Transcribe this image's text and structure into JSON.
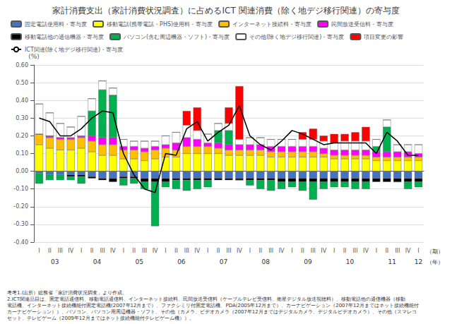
{
  "chart_data": {
    "type": "bar",
    "title": "家計消費支出（家計消費状況調査）に占めるICT 関連消費（除く地デジ移行関連）の寄与度",
    "ylabel": "(%)",
    "stacked": true,
    "grid": true,
    "legend": "upper left",
    "ylim": [
      -0.4,
      0.6
    ],
    "yticks": [
      {
        "value": -0.4,
        "label": "-0.40"
      },
      {
        "value": -0.3,
        "label": "-0.30"
      },
      {
        "value": -0.2,
        "label": "-0.20"
      },
      {
        "value": -0.1,
        "label": "-0.10"
      },
      {
        "value": 0,
        "label": "0.00"
      },
      {
        "value": 0.1,
        "label": "0.10"
      },
      {
        "value": 0.2,
        "label": "0.20"
      },
      {
        "value": 0.3,
        "label": "0.30"
      },
      {
        "value": 0.4,
        "label": "0.40"
      },
      {
        "value": 0.5,
        "label": "0.50"
      },
      {
        "value": 0.6,
        "label": "0.60"
      }
    ],
    "categories": [
      "I",
      "II",
      "III",
      "IV",
      "I",
      "II",
      "III",
      "IV",
      "I",
      "II",
      "III",
      "IV",
      "I",
      "II",
      "III",
      "IV",
      "I",
      "II",
      "III",
      "IV",
      "I",
      "II",
      "III",
      "IV",
      "I",
      "II",
      "III",
      "IV",
      "I",
      "II",
      "III",
      "IV",
      "I",
      "II",
      "III",
      "IV",
      "I"
    ],
    "year_labels": [
      {
        "text": "03",
        "x": 1.5
      },
      {
        "text": "04",
        "x": 5.5
      },
      {
        "text": "05",
        "x": 9.5
      },
      {
        "text": "06",
        "x": 13.5
      },
      {
        "text": "07",
        "x": 17.5
      },
      {
        "text": "08",
        "x": 21.5
      },
      {
        "text": "09",
        "x": 25.5
      },
      {
        "text": "10",
        "x": 29.5
      },
      {
        "text": "11",
        "x": 33.5
      },
      {
        "text": "12",
        "x": 36.0
      }
    ],
    "quarter_unit": "（期）",
    "year_unit": "（年）",
    "footnote": "考考1.(出所）総務省「家計消費状況調査」より作成。\n2.ICT関連品目は、固定電話通信料、移動電話通信料、インターネット接続料、民間放送受信料（ケーブルテレビ受信料、衛星デジタル放送視聴料）、移動電話他の通信機器（移動\n電話機、インターネット接続機能付固定電話機(2007年12月まで）、ファクシミリ付固定電話機、PDA(2005年12月まで）、カーナビゲーション（2007年12月まではネット接続機能付\nカーナビゲーション））、パソコン、パソコン用周辺機器・ソフト、その他（カメラ、ビデオカメラ（2007年12月まではデジタルカメラ、デジタルビデオカメラ）、その他（スマレコ\nセット、テレビゲーム（2009年12月まではネット接続機能付テレビゲーム機））。",
    "series": [
      {
        "name": "固定電話使用料・寄与度",
        "type": "bar",
        "color": "#4472C4",
        "values": [
          -0.01,
          -0.02,
          -0.02,
          -0.02,
          -0.02,
          -0.03,
          -0.04,
          -0.04,
          -0.03,
          -0.03,
          -0.04,
          -0.04,
          -0.04,
          -0.04,
          -0.04,
          -0.04,
          -0.04,
          -0.04,
          -0.04,
          -0.04,
          -0.04,
          -0.04,
          -0.04,
          -0.04,
          -0.04,
          -0.04,
          -0.04,
          -0.04,
          -0.04,
          -0.04,
          -0.04,
          -0.04,
          -0.04,
          -0.04,
          -0.04,
          -0.04,
          -0.04
        ]
      },
      {
        "name": "移動電話(携帯電話・PHS)使用料・寄与度",
        "type": "bar",
        "color": "#FFFF00",
        "values": [
          0.15,
          0.13,
          0.12,
          0.12,
          0.13,
          0.11,
          0.09,
          0.09,
          0.07,
          0.07,
          0.06,
          0.07,
          0.08,
          0.08,
          0.1,
          0.1,
          0.1,
          0.1,
          0.09,
          0.09,
          0.09,
          0.09,
          0.08,
          0.08,
          0.08,
          0.08,
          0.08,
          0.08,
          0.07,
          0.07,
          0.07,
          0.07,
          0.06,
          0.06,
          0.06,
          0.06,
          0.06
        ]
      },
      {
        "name": "インターネット接続料・寄与度",
        "type": "bar",
        "color": "#FFC000",
        "values": [
          0.06,
          0.06,
          0.06,
          0.06,
          0.06,
          0.06,
          0.06,
          0.06,
          0.05,
          0.05,
          0.05,
          0.05,
          0.05,
          0.04,
          0.04,
          0.04,
          0.04,
          0.03,
          0.03,
          0.03,
          0.03,
          0.03,
          0.03,
          0.03,
          0.03,
          0.03,
          0.03,
          0.02,
          0.02,
          0.02,
          0.02,
          0.02,
          0.02,
          0.02,
          0.02,
          0.02,
          0.02
        ]
      },
      {
        "name": "民間放送受信料・寄与度",
        "type": "bar",
        "color": "#FF00FF",
        "values": [
          0.0,
          0.01,
          0.01,
          0.01,
          0.01,
          0.03,
          0.04,
          0.04,
          0.02,
          0.02,
          0.02,
          0.02,
          0.02,
          0.04,
          0.05,
          0.04,
          0.02,
          0.03,
          0.03,
          0.03,
          0.03,
          0.03,
          0.03,
          0.03,
          0.03,
          0.03,
          0.03,
          0.03,
          0.03,
          0.03,
          0.03,
          0.03,
          0.03,
          0.03,
          0.03,
          0.03,
          0.02
        ]
      },
      {
        "name": "移動電話他の通信機器・寄与度",
        "type": "bar",
        "color": "#000000",
        "values": [
          0.0,
          0.0,
          0.0,
          -0.01,
          -0.01,
          -0.01,
          -0.01,
          -0.02,
          -0.01,
          -0.01,
          -0.02,
          -0.02,
          -0.02,
          -0.01,
          -0.01,
          -0.01,
          -0.01,
          -0.01,
          -0.01,
          -0.01,
          -0.01,
          -0.01,
          -0.01,
          -0.02,
          -0.02,
          -0.02,
          -0.02,
          -0.02,
          -0.02,
          -0.02,
          -0.02,
          -0.02,
          -0.02,
          -0.02,
          -0.02,
          -0.02,
          -0.02
        ]
      },
      {
        "name": "パソコン(含む周辺機器・ソフト)・寄与度",
        "type": "bar",
        "color": "#00B050",
        "values": [
          -0.06,
          -0.03,
          -0.03,
          -0.02,
          -0.04,
          0.14,
          0.27,
          0.24,
          -0.04,
          -0.03,
          -0.04,
          -0.25,
          -0.03,
          -0.05,
          -0.06,
          -0.05,
          -0.04,
          0.07,
          0.08,
          0.0,
          -0.03,
          -0.05,
          -0.06,
          -0.04,
          -0.03,
          -0.05,
          -0.1,
          -0.04,
          -0.03,
          -0.03,
          -0.04,
          -0.04,
          0.03,
          0.14,
          0.0,
          -0.04,
          -0.03
        ]
      },
      {
        "name": "その他(除く地デジ移行関連)・寄与度",
        "type": "bar",
        "color": "#FFFFFF",
        "values": [
          0.17,
          0.13,
          0.08,
          0.06,
          0.11,
          0.07,
          0.05,
          0.04,
          0.04,
          0.03,
          0.04,
          0.03,
          0.05,
          0.06,
          0.07,
          0.05,
          0.05,
          0.04,
          0.04,
          0.03,
          0.04,
          0.04,
          0.04,
          0.04,
          0.04,
          0.04,
          0.04,
          0.04,
          0.04,
          0.05,
          0.05,
          0.05,
          0.04,
          0.04,
          0.04,
          0.04,
          0.05
        ]
      },
      {
        "name": "項目変更の影響",
        "type": "bar",
        "color": "#FF0000",
        "values": [
          0.0,
          0.0,
          0.0,
          0.0,
          0.0,
          0.0,
          0.0,
          0.0,
          0.0,
          0.0,
          0.0,
          0.0,
          0.0,
          0.0,
          0.08,
          0.13,
          0.0,
          0.0,
          0.09,
          0.3,
          0.0,
          0.0,
          0.0,
          0.0,
          0.0,
          0.04,
          0.06,
          0.03,
          0.05,
          0.04,
          0.05,
          0.08,
          0.0,
          0.0,
          0.0,
          0.0,
          0.0
        ]
      },
      {
        "name": "ICT関連(除く地デジ移行関連)・寄与度",
        "type": "line",
        "color": "#000000",
        "values": [
          0.3,
          0.28,
          0.2,
          0.2,
          0.24,
          0.3,
          0.34,
          0.33,
          0.1,
          -0.02,
          -0.1,
          -0.12,
          0.1,
          0.09,
          0.24,
          0.28,
          0.17,
          0.22,
          0.26,
          0.37,
          0.2,
          0.15,
          0.12,
          0.17,
          0.23,
          0.21,
          0.18,
          0.15,
          0.16,
          0.16,
          0.16,
          0.16,
          0.1,
          0.22,
          0.17,
          0.09,
          0.09
        ]
      }
    ]
  }
}
